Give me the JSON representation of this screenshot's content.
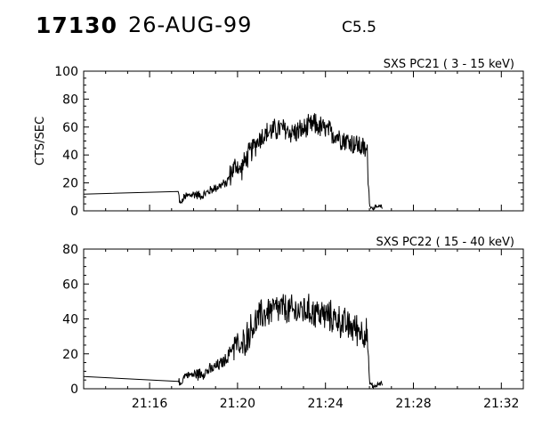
{
  "header": {
    "event_id": "17130",
    "date": "26-AUG-99",
    "flare_class": "C5.5"
  },
  "chart_data": [
    {
      "type": "line",
      "title": "SXS PC21  (  3 - 15 keV)",
      "ylabel": "CTS/SEC",
      "xlim": [
        "21:13:00",
        "21:33:00"
      ],
      "ylim": [
        0,
        100
      ],
      "yticks": [
        0,
        20,
        40,
        60,
        80,
        100
      ],
      "xtick_labels": [],
      "x_tick_minutes": [
        "21:16",
        "21:20",
        "21:24",
        "21:28",
        "21:32"
      ],
      "grid": false,
      "series": [
        {
          "x": [
            "21:13:00",
            "21:17:18",
            "21:17:24",
            "21:17:36",
            "21:18:00",
            "21:18:24",
            "21:18:48",
            "21:19:12",
            "21:19:30",
            "21:19:48",
            "21:20:00",
            "21:20:06",
            "21:20:30",
            "21:21:00",
            "21:21:30",
            "21:22:00",
            "21:22:30",
            "21:23:00",
            "21:23:30",
            "21:24:00",
            "21:24:30",
            "21:25:00",
            "21:25:30",
            "21:25:54",
            "21:26:00",
            "21:26:06",
            "21:26:12",
            "21:26:30",
            "21:26:36"
          ],
          "y": [
            12,
            13,
            5,
            10,
            12,
            11,
            15,
            18,
            20,
            30,
            33,
            28,
            40,
            52,
            57,
            59,
            56,
            58,
            62,
            58,
            54,
            50,
            47,
            42,
            5,
            2,
            2,
            3,
            2
          ],
          "noise": 10
        }
      ]
    },
    {
      "type": "line",
      "title": "SXS PC22  ( 15 - 40 keV)",
      "ylabel": "",
      "xlim": [
        "21:13:00",
        "21:33:00"
      ],
      "ylim": [
        0,
        80
      ],
      "yticks": [
        0,
        20,
        40,
        60,
        80
      ],
      "xtick_labels": [
        "21:16",
        "21:20",
        "21:24",
        "21:28",
        "21:32"
      ],
      "x_tick_minutes": [
        "21:16",
        "21:20",
        "21:24",
        "21:28",
        "21:32"
      ],
      "grid": false,
      "series": [
        {
          "x": [
            "21:13:00",
            "21:17:18",
            "21:17:24",
            "21:17:36",
            "21:18:00",
            "21:18:24",
            "21:18:48",
            "21:19:12",
            "21:19:30",
            "21:19:48",
            "21:20:00",
            "21:20:06",
            "21:20:30",
            "21:21:00",
            "21:21:30",
            "21:22:00",
            "21:22:30",
            "21:23:00",
            "21:23:30",
            "21:24:00",
            "21:24:30",
            "21:25:00",
            "21:25:30",
            "21:25:54",
            "21:26:00",
            "21:26:06",
            "21:26:12",
            "21:26:30",
            "21:26:36"
          ],
          "y": [
            7,
            6,
            2,
            8,
            8,
            9,
            11,
            14,
            17,
            25,
            26,
            22,
            32,
            41,
            45,
            46,
            44,
            45,
            44,
            42,
            40,
            36,
            34,
            31,
            4,
            2,
            1,
            3,
            2
          ],
          "noise": 11
        }
      ]
    }
  ]
}
